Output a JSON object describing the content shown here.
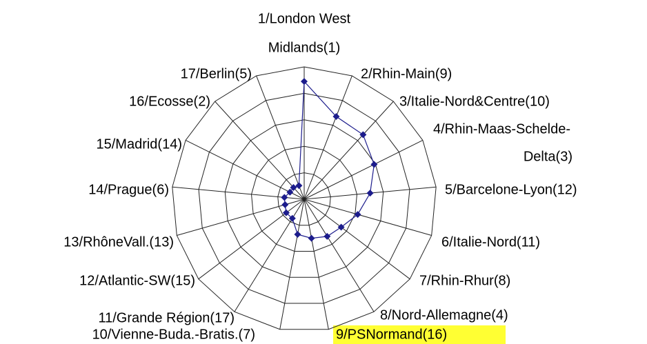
{
  "chart_data": {
    "type": "radar",
    "categories": [
      [
        "1/London West",
        "Midlands(1)"
      ],
      "2/Rhin-Main(9)",
      "3/Italie-Nord&Centre(10)",
      [
        "4/Rhin-Maas-Schelde-",
        "Delta(3)"
      ],
      "5/Barcelone-Lyon(12)",
      "6/Italie-Nord(11)",
      "7/Rhin-Rhur(8)",
      "8/Nord-Allemagne(4)",
      "9/PSNormand(16)",
      "10/Vienne-Buda.-Bratis.(7)",
      "11/Grande Région(17)",
      "12/Atlantic-SW(15)",
      "13/RhôneVall.(13)",
      "14/Prague(6)",
      "15/Madrid(14)",
      "16/Ecosse(2)",
      "17/Berlin(5)"
    ],
    "series": [
      {
        "color": "#1c1c8c",
        "values": [
          4.45,
          3.35,
          3.3,
          2.95,
          2.5,
          2.1,
          1.75,
          1.65,
          1.5,
          1.35,
          0.85,
          0.85,
          0.75,
          0.75,
          0.6,
          0.6,
          0.55
        ]
      }
    ],
    "ylim": [
      0,
      5
    ],
    "yticks": [
      0,
      1,
      2,
      3,
      4,
      5
    ],
    "grid": true
  }
}
